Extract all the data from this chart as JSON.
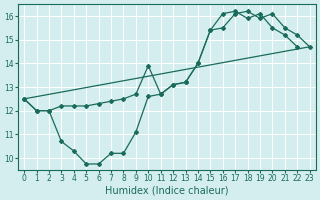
{
  "line1_x": [
    0,
    1,
    2,
    3,
    4,
    5,
    6,
    7,
    8,
    9,
    10,
    11,
    12,
    13,
    14,
    15,
    16,
    17,
    18,
    19,
    20,
    21,
    22,
    23
  ],
  "line1_y": [
    12.5,
    12.0,
    12.0,
    12.2,
    12.2,
    12.2,
    12.3,
    12.4,
    12.5,
    12.7,
    13.9,
    12.7,
    13.1,
    13.2,
    14.0,
    15.4,
    15.5,
    16.1,
    16.2,
    15.9,
    16.1,
    15.5,
    15.2,
    14.7
  ],
  "line2_x": [
    0,
    1,
    2,
    3,
    4,
    5,
    6,
    7,
    8,
    9,
    10,
    11,
    12,
    13,
    14,
    15,
    16,
    17,
    18,
    19,
    20,
    21,
    22
  ],
  "line2_y": [
    12.5,
    12.0,
    12.0,
    10.7,
    10.3,
    9.75,
    9.75,
    10.2,
    10.2,
    11.1,
    12.6,
    12.7,
    13.1,
    13.2,
    14.0,
    15.4,
    16.1,
    16.2,
    15.9,
    16.1,
    15.5,
    15.2,
    14.7
  ],
  "line3_x": [
    0,
    23
  ],
  "line3_y": [
    12.5,
    14.7
  ],
  "line_color": "#1a6b5a",
  "bg_color": "#d4eef0",
  "grid_color": "#ffffff",
  "xlabel": "Humidex (Indice chaleur)",
  "ylim": [
    9.5,
    16.5
  ],
  "xlim": [
    -0.5,
    23.5
  ],
  "yticks": [
    10,
    11,
    12,
    13,
    14,
    15,
    16
  ],
  "xticks": [
    0,
    1,
    2,
    3,
    4,
    5,
    6,
    7,
    8,
    9,
    10,
    11,
    12,
    13,
    14,
    15,
    16,
    17,
    18,
    19,
    20,
    21,
    22,
    23
  ],
  "tick_fontsize": 5.5,
  "xlabel_fontsize": 7,
  "marker": "D",
  "marker_size": 2.0,
  "line_width": 0.9
}
